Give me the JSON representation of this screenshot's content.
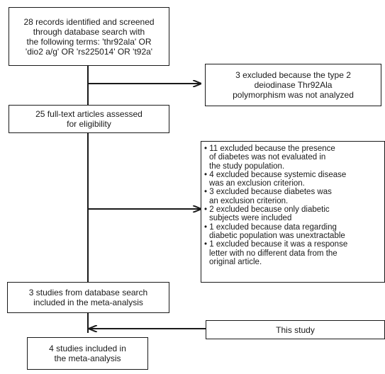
{
  "boxes": {
    "records": {
      "lines": [
        "28 records identified and screened",
        "through database search with",
        "the following terms: 'thr92ala' OR",
        "'dio2 a/g' OR 'rs225014' OR 't92a'"
      ]
    },
    "excluded_first": {
      "lines": [
        "3 excluded because the type 2",
        "deiodinase Thr92Ala",
        "polymorphism was not analyzed"
      ]
    },
    "fulltext": {
      "lines": [
        "25 full-text articles assessed",
        "for eligibility"
      ]
    },
    "excluded_list": {
      "items": [
        {
          "first": "11 excluded because the presence",
          "rest": [
            "of diabetes was not evaluated in",
            "the study population."
          ]
        },
        {
          "first": "4 excluded because systemic disease",
          "rest": [
            "was an exclusion criterion."
          ]
        },
        {
          "first": "3 excluded because diabetes was",
          "rest": [
            "an exclusion criterion."
          ]
        },
        {
          "first": "2 excluded because only diabetic",
          "rest": [
            "subjects were included"
          ]
        },
        {
          "first": "1 excluded because data regarding",
          "rest": [
            "diabetic population was unextractable"
          ]
        },
        {
          "first": "1 excluded because it was a response",
          "rest": [
            "letter with no different data from the",
            "original article."
          ]
        }
      ]
    },
    "included_search": {
      "lines": [
        "3 studies from database search",
        "included in the meta-analysis"
      ]
    },
    "this_study": {
      "lines": [
        "This study"
      ]
    },
    "final": {
      "lines": [
        "4 studies included in",
        "the meta-analysis"
      ]
    }
  }
}
